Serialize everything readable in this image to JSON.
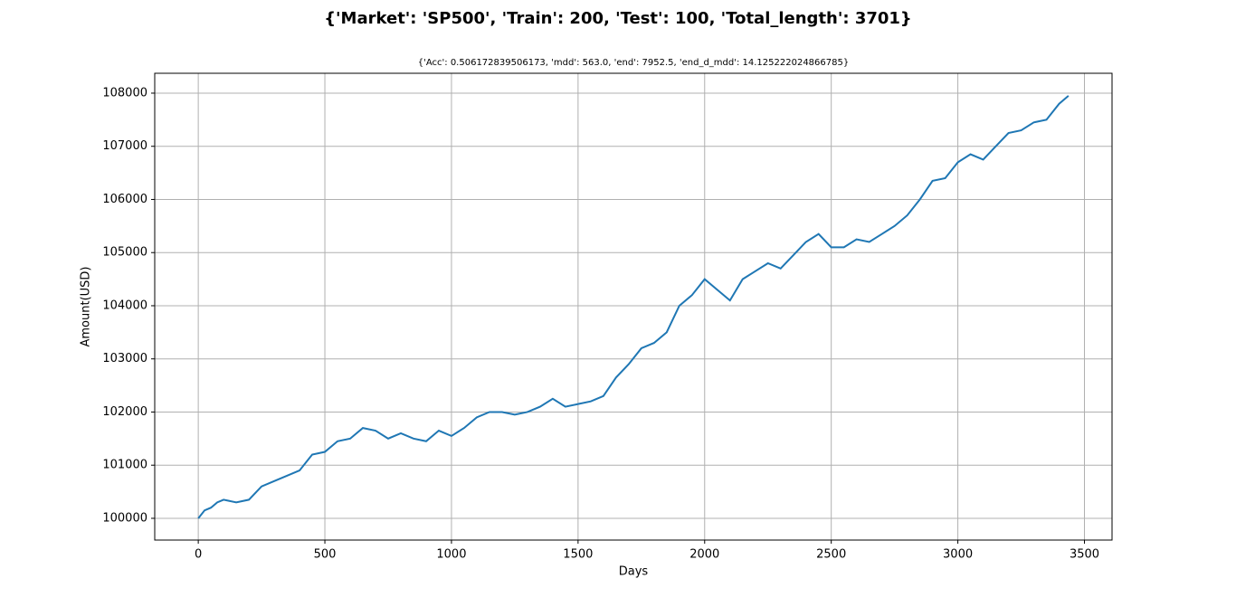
{
  "chart_data": {
    "type": "line",
    "title": "{'Market': 'SP500', 'Train': 200, 'Test': 100, 'Total_length': 3701}",
    "subtitle": "{'Acc': 0.506172839506173, 'mdd': 563.0, 'end': 7952.5, 'end_d_mdd': 14.125222024866785}",
    "x_label": "Days",
    "y_label": "Amount(USD)",
    "x": [
      0,
      25,
      50,
      75,
      100,
      150,
      200,
      250,
      300,
      350,
      400,
      450,
      500,
      550,
      600,
      650,
      700,
      750,
      800,
      850,
      900,
      950,
      1000,
      1050,
      1100,
      1150,
      1200,
      1250,
      1300,
      1350,
      1400,
      1450,
      1500,
      1550,
      1600,
      1650,
      1700,
      1750,
      1800,
      1850,
      1900,
      1950,
      2000,
      2050,
      2100,
      2150,
      2200,
      2250,
      2300,
      2350,
      2400,
      2450,
      2500,
      2550,
      2600,
      2650,
      2700,
      2750,
      2800,
      2850,
      2900,
      2950,
      3000,
      3050,
      3100,
      3150,
      3200,
      3250,
      3300,
      3350,
      3400,
      3437
    ],
    "series": [
      {
        "name": "Amount",
        "color": "#1f77b4",
        "values": [
          100000,
          100150,
          100200,
          100300,
          100350,
          100300,
          100350,
          100600,
          100700,
          100800,
          100900,
          101200,
          101250,
          101450,
          101500,
          101700,
          101650,
          101500,
          101600,
          101500,
          101450,
          101650,
          101550,
          101700,
          101900,
          102000,
          102000,
          101950,
          102000,
          102100,
          102250,
          102100,
          102150,
          102200,
          102300,
          102650,
          102900,
          103200,
          103300,
          103500,
          104000,
          104200,
          104500,
          104300,
          104100,
          104500,
          104650,
          104800,
          104700,
          104950,
          105200,
          105350,
          105100,
          105100,
          105250,
          105200,
          105350,
          105500,
          105700,
          106000,
          106350,
          106400,
          106700,
          106850,
          106750,
          107000,
          107250,
          107300,
          107450,
          107500,
          107800,
          107950
        ]
      }
    ],
    "xlim": [
      -172,
      3609
    ],
    "xticks": [
      0,
      500,
      1000,
      1500,
      2000,
      2500,
      3000,
      3500
    ],
    "ylim": [
      99591,
      108374
    ],
    "yticks": [
      100000,
      101000,
      102000,
      103000,
      104000,
      105000,
      106000,
      107000,
      108000
    ],
    "grid": true
  }
}
